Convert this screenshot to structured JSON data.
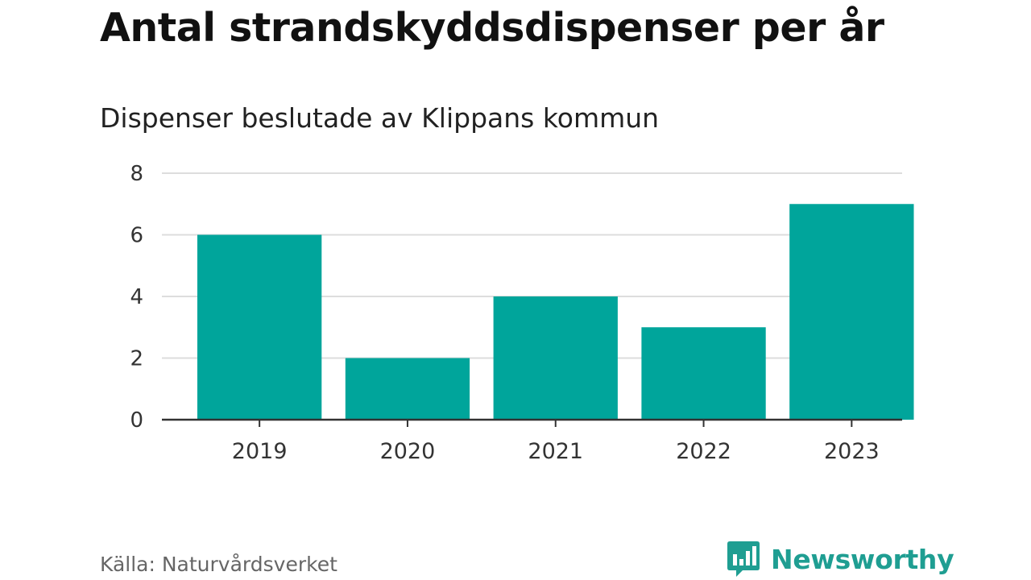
{
  "header": {
    "title": "Antal strandskyddsdispenser per år",
    "subtitle": "Dispenser beslutade av Klippans kommun"
  },
  "footer": {
    "source": "Källa: Naturvårdsverket",
    "brand": "Newsworthy"
  },
  "colors": {
    "bar": "#00a59b",
    "grid": "#dddddd",
    "axis": "#333333",
    "tick_text": "#333333",
    "brand": "#1f9e92"
  },
  "chart_data": {
    "type": "bar",
    "title": "Antal strandskyddsdispenser per år",
    "subtitle": "Dispenser beslutade av Klippans kommun",
    "categories": [
      "2019",
      "2020",
      "2021",
      "2022",
      "2023"
    ],
    "values": [
      6,
      2,
      4,
      3,
      7
    ],
    "xlabel": "",
    "ylabel": "",
    "ylim": [
      0,
      8
    ],
    "yticks": [
      0,
      2,
      4,
      6,
      8
    ],
    "grid": true,
    "legend": "none"
  }
}
